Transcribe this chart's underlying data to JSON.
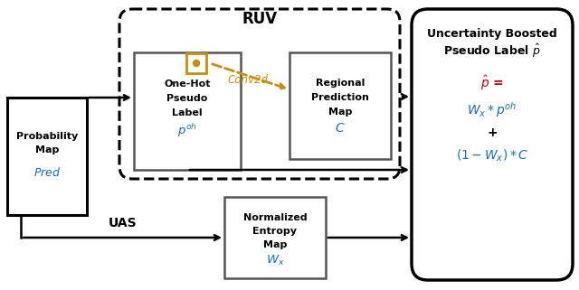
{
  "bg_color": "#ffffff",
  "arrow_color": "#000000",
  "gold_color": "#c8900a",
  "blue_color": "#1a6faf",
  "red_color": "#cc0000",
  "black_color": "#000000",
  "ruv_label": "RUV",
  "uas_label": "UAS",
  "conv2d_label": "Conv2d",
  "prob_lines": [
    "Probability",
    "Map"
  ],
  "prob_italic": "Pred",
  "onehot_lines": [
    "One-Hot",
    "Pseudo",
    "Label"
  ],
  "onehot_italic": "p^{oh}",
  "regional_lines": [
    "Regional",
    "Prediction",
    "Map"
  ],
  "regional_italic": "C",
  "norm_lines": [
    "Normalized",
    "Entropy",
    "Map"
  ],
  "norm_italic": "W_x",
  "unc_line1": "Uncertainty Boosted",
  "unc_line2": "Pseudo Label",
  "formula_line1": "\\hat{p} =",
  "formula_line2": "W_x * p^{oh}",
  "formula_plus": "+",
  "formula_line3": "(1 - W_x) * C"
}
